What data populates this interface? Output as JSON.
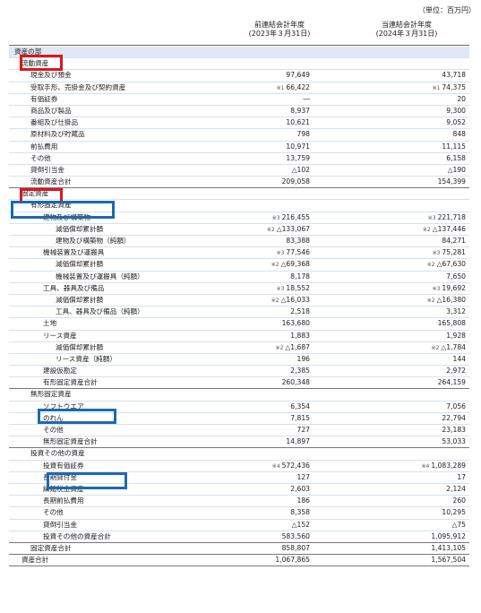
{
  "unit_label": "（単位：百万円）",
  "columns": {
    "prior": {
      "line1": "前連結会計年度",
      "line2": "(2023年３月31日)"
    },
    "current": {
      "line1": "当連結会計年度",
      "line2": "(2024年３月31日)"
    }
  },
  "rows": [
    {
      "label": "資産の部",
      "indent": 0,
      "prior": "",
      "current": "",
      "shade": true
    },
    {
      "label": "流動資産",
      "indent": 1,
      "prior": "",
      "current": ""
    },
    {
      "label": "現金及び預金",
      "indent": 2,
      "prior": "97,649",
      "current": "43,718"
    },
    {
      "label": "受取手形、売掛金及び契約資産",
      "indent": 2,
      "prior": "66,422",
      "current": "74,375",
      "prior_note": "※1",
      "current_note": "※1"
    },
    {
      "label": "有価証券",
      "indent": 2,
      "prior": "―",
      "current": "20"
    },
    {
      "label": "商品及び製品",
      "indent": 2,
      "prior": "8,937",
      "current": "9,300"
    },
    {
      "label": "番組及び仕掛品",
      "indent": 2,
      "prior": "10,621",
      "current": "9,052"
    },
    {
      "label": "原材料及び貯蔵品",
      "indent": 2,
      "prior": "798",
      "current": "848"
    },
    {
      "label": "前払費用",
      "indent": 2,
      "prior": "10,971",
      "current": "11,115"
    },
    {
      "label": "その他",
      "indent": 2,
      "prior": "13,759",
      "current": "6,158"
    },
    {
      "label": "貸倒引当金",
      "indent": 2,
      "prior": "△102",
      "current": "△190"
    },
    {
      "label": "流動資産合計",
      "indent": 2,
      "prior": "209,058",
      "current": "154,399",
      "total": true
    },
    {
      "label": "固定資産",
      "indent": 1,
      "prior": "",
      "current": ""
    },
    {
      "label": "有形固定資産",
      "indent": 2,
      "prior": "",
      "current": ""
    },
    {
      "label": "建物及び構築物",
      "indent": 3,
      "prior": "216,455",
      "current": "221,718",
      "prior_note": "※3",
      "current_note": "※3"
    },
    {
      "label": "減価償却累計額",
      "indent": 4,
      "prior": "△133,067",
      "current": "△137,446",
      "prior_note": "※2",
      "current_note": "※2"
    },
    {
      "label": "建物及び構築物（純額）",
      "indent": 4,
      "prior": "83,388",
      "current": "84,271"
    },
    {
      "label": "機械装置及び運搬具",
      "indent": 3,
      "prior": "77,546",
      "current": "75,281",
      "prior_note": "※3",
      "current_note": "※3"
    },
    {
      "label": "減価償却累計額",
      "indent": 4,
      "prior": "△69,368",
      "current": "△67,630",
      "prior_note": "※2",
      "current_note": "※2"
    },
    {
      "label": "機械装置及び運搬具（純額）",
      "indent": 4,
      "prior": "8,178",
      "current": "7,650"
    },
    {
      "label": "工具、器具及び備品",
      "indent": 3,
      "prior": "18,552",
      "current": "19,692",
      "prior_note": "※3",
      "current_note": "※3"
    },
    {
      "label": "減価償却累計額",
      "indent": 4,
      "prior": "△16,033",
      "current": "△16,380",
      "prior_note": "※2",
      "current_note": "※2"
    },
    {
      "label": "工具、器具及び備品（純額）",
      "indent": 4,
      "prior": "2,518",
      "current": "3,312"
    },
    {
      "label": "土地",
      "indent": 3,
      "prior": "163,680",
      "current": "165,808"
    },
    {
      "label": "リース資産",
      "indent": 3,
      "prior": "1,883",
      "current": "1,928"
    },
    {
      "label": "減価償却累計額",
      "indent": 4,
      "prior": "△1,687",
      "current": "△1,784",
      "prior_note": "※2",
      "current_note": "※2"
    },
    {
      "label": "リース資産（純額）",
      "indent": 4,
      "prior": "196",
      "current": "144"
    },
    {
      "label": "建設仮勘定",
      "indent": 3,
      "prior": "2,385",
      "current": "2,972"
    },
    {
      "label": "有形固定資産合計",
      "indent": 3,
      "prior": "260,348",
      "current": "264,159",
      "total": true
    },
    {
      "label": "無形固定資産",
      "indent": 2,
      "prior": "",
      "current": ""
    },
    {
      "label": "ソフトウエア",
      "indent": 3,
      "prior": "6,354",
      "current": "7,056"
    },
    {
      "label": "のれん",
      "indent": 3,
      "prior": "7,815",
      "current": "22,794"
    },
    {
      "label": "その他",
      "indent": 3,
      "prior": "727",
      "current": "23,183"
    },
    {
      "label": "無形固定資産合計",
      "indent": 3,
      "prior": "14,897",
      "current": "53,033",
      "total": true
    },
    {
      "label": "投資その他の資産",
      "indent": 2,
      "prior": "",
      "current": ""
    },
    {
      "label": "投資有価証券",
      "indent": 3,
      "prior": "572,436",
      "current": "1,083,289",
      "prior_note": "※4",
      "current_note": "※4"
    },
    {
      "label": "長期貸付金",
      "indent": 3,
      "prior": "127",
      "current": "17"
    },
    {
      "label": "繰延税金資産",
      "indent": 3,
      "prior": "2,603",
      "current": "2,124"
    },
    {
      "label": "長期前払費用",
      "indent": 3,
      "prior": "186",
      "current": "260"
    },
    {
      "label": "その他",
      "indent": 3,
      "prior": "8,358",
      "current": "10,295"
    },
    {
      "label": "貸倒引当金",
      "indent": 3,
      "prior": "△152",
      "current": "△75"
    },
    {
      "label": "投資その他の資産合計",
      "indent": 3,
      "prior": "583,560",
      "current": "1,095,912",
      "total": true
    },
    {
      "label": "固定資産合計",
      "indent": 2,
      "prior": "858,807",
      "current": "1,413,105",
      "total": true
    },
    {
      "label": "資産合計",
      "indent": 1,
      "prior": "1,067,865",
      "current": "1,567,504",
      "total": true
    }
  ],
  "highlight_colors": {
    "red": "#e0141e",
    "blue": "#1a6ab0"
  }
}
